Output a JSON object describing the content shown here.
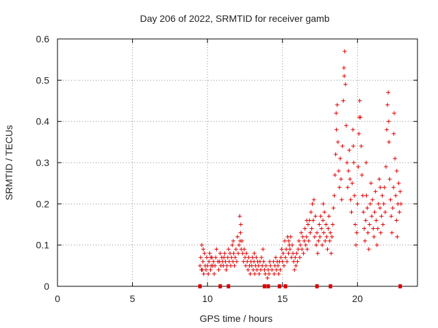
{
  "chart_data": {
    "type": "scatter",
    "title": "Day 206 of 2022, SRMTID for receiver gamb",
    "xlabel": "GPS time / hours",
    "ylabel": "SRMTID / TECUs",
    "xlim": [
      0,
      24
    ],
    "ylim": [
      0,
      0.6
    ],
    "x_ticks": [
      0,
      5,
      10,
      15,
      20
    ],
    "y_ticks": [
      0,
      0.1,
      0.2,
      0.3,
      0.4,
      0.5,
      0.6
    ],
    "x_tick_labels": [
      "0",
      "5",
      "10",
      "15",
      "20"
    ],
    "y_tick_labels": [
      "0",
      "0.1",
      "0.2",
      "0.3",
      "0.4",
      "0.5",
      "0.6"
    ],
    "grid": true,
    "marker": "+",
    "color": "#dd0000",
    "series": [
      {
        "name": "SRMTID",
        "points": [
          [
            9.5,
            0.05
          ],
          [
            9.55,
            0.07
          ],
          [
            9.6,
            0.04
          ],
          [
            9.62,
            0.1
          ],
          [
            9.7,
            0.06
          ],
          [
            9.75,
            0.03
          ],
          [
            9.8,
            0.08
          ],
          [
            9.85,
            0.05
          ],
          [
            9.9,
            0.04
          ],
          [
            9.95,
            0.07
          ],
          [
            10.0,
            0.05
          ],
          [
            10.05,
            0.03
          ],
          [
            10.1,
            0.06
          ],
          [
            10.15,
            0.08
          ],
          [
            10.2,
            0.04
          ],
          [
            10.25,
            0.05
          ],
          [
            10.3,
            0.07
          ],
          [
            10.35,
            0.05
          ],
          [
            10.4,
            0.06
          ],
          [
            10.45,
            0.03
          ],
          [
            10.5,
            0.05
          ],
          [
            10.55,
            0.07
          ],
          [
            10.6,
            0.09
          ],
          [
            10.7,
            0.06
          ],
          [
            10.75,
            0.04
          ],
          [
            10.8,
            0.06
          ],
          [
            10.85,
            0.08
          ],
          [
            10.9,
            0.05
          ],
          [
            10.95,
            0.07
          ],
          [
            11.0,
            0.06
          ],
          [
            11.05,
            0.05
          ],
          [
            11.1,
            0.07
          ],
          [
            11.15,
            0.08
          ],
          [
            11.2,
            0.06
          ],
          [
            11.3,
            0.05
          ],
          [
            11.35,
            0.07
          ],
          [
            11.4,
            0.09
          ],
          [
            11.45,
            0.06
          ],
          [
            11.5,
            0.08
          ],
          [
            11.55,
            0.05
          ],
          [
            11.6,
            0.07
          ],
          [
            11.65,
            0.1
          ],
          [
            11.7,
            0.06
          ],
          [
            11.75,
            0.08
          ],
          [
            11.8,
            0.05
          ],
          [
            11.85,
            0.07
          ],
          [
            11.9,
            0.09
          ],
          [
            11.95,
            0.06
          ],
          [
            12.0,
            0.12
          ],
          [
            12.05,
            0.08
          ],
          [
            12.1,
            0.1
          ],
          [
            12.15,
            0.17
          ],
          [
            12.2,
            0.13
          ],
          [
            12.22,
            0.15
          ],
          [
            12.25,
            0.09
          ],
          [
            12.3,
            0.11
          ],
          [
            12.35,
            0.08
          ],
          [
            12.4,
            0.06
          ],
          [
            12.45,
            0.09
          ],
          [
            12.5,
            0.07
          ],
          [
            12.55,
            0.05
          ],
          [
            12.6,
            0.08
          ],
          [
            12.65,
            0.06
          ],
          [
            12.7,
            0.04
          ],
          [
            12.75,
            0.07
          ],
          [
            12.8,
            0.05
          ],
          [
            12.85,
            0.03
          ],
          [
            12.9,
            0.06
          ],
          [
            12.95,
            0.05
          ],
          [
            13.0,
            0.07
          ],
          [
            13.05,
            0.04
          ],
          [
            13.1,
            0.06
          ],
          [
            13.15,
            0.03
          ],
          [
            13.2,
            0.05
          ],
          [
            13.25,
            0.07
          ],
          [
            13.3,
            0.04
          ],
          [
            13.35,
            0.06
          ],
          [
            13.4,
            0.05
          ],
          [
            13.45,
            0.03
          ],
          [
            13.5,
            0.06
          ],
          [
            13.55,
            0.04
          ],
          [
            13.6,
            0.07
          ],
          [
            13.65,
            0.05
          ],
          [
            13.7,
            0.09
          ],
          [
            13.75,
            0.06
          ],
          [
            13.8,
            0.04
          ],
          [
            13.85,
            0.03
          ],
          [
            13.9,
            0.05
          ],
          [
            14.0,
            0.02
          ],
          [
            14.05,
            0.04
          ],
          [
            14.1,
            0.03
          ],
          [
            14.2,
            0.05
          ],
          [
            14.3,
            0.04
          ],
          [
            14.4,
            0.06
          ],
          [
            14.45,
            0.03
          ],
          [
            14.5,
            0.05
          ],
          [
            14.55,
            0.07
          ],
          [
            14.6,
            0.04
          ],
          [
            14.65,
            0.06
          ],
          [
            14.7,
            0.05
          ],
          [
            14.75,
            0.03
          ],
          [
            14.8,
            0.06
          ],
          [
            14.85,
            0.04
          ],
          [
            14.9,
            0.07
          ],
          [
            14.95,
            0.09
          ],
          [
            15.0,
            0.06
          ],
          [
            15.05,
            0.08
          ],
          [
            15.1,
            0.05
          ],
          [
            15.15,
            0.11
          ],
          [
            15.2,
            0.07
          ],
          [
            15.25,
            0.09
          ],
          [
            15.3,
            0.06
          ],
          [
            15.35,
            0.12
          ],
          [
            15.4,
            0.08
          ],
          [
            15.45,
            0.1
          ],
          [
            15.5,
            0.09
          ],
          [
            15.55,
            0.12
          ],
          [
            15.6,
            0.07
          ],
          [
            15.65,
            0.1
          ],
          [
            15.7,
            0.08
          ],
          [
            15.75,
            0.06
          ],
          [
            15.8,
            0.04
          ],
          [
            15.85,
            0.07
          ],
          [
            15.9,
            0.05
          ],
          [
            15.95,
            0.08
          ],
          [
            16.0,
            0.06
          ],
          [
            16.05,
            0.09
          ],
          [
            16.1,
            0.11
          ],
          [
            16.15,
            0.07
          ],
          [
            16.2,
            0.1
          ],
          [
            16.25,
            0.13
          ],
          [
            16.3,
            0.09
          ],
          [
            16.35,
            0.12
          ],
          [
            16.4,
            0.08
          ],
          [
            16.45,
            0.11
          ],
          [
            16.5,
            0.14
          ],
          [
            16.55,
            0.1
          ],
          [
            16.6,
            0.12
          ],
          [
            16.65,
            0.09
          ],
          [
            16.7,
            0.15
          ],
          [
            16.75,
            0.11
          ],
          [
            16.8,
            0.16
          ],
          [
            16.85,
            0.13
          ],
          [
            16.9,
            0.18
          ],
          [
            16.95,
            0.14
          ],
          [
            17.0,
            0.2
          ],
          [
            17.05,
            0.16
          ],
          [
            17.1,
            0.21
          ],
          [
            17.15,
            0.12
          ],
          [
            17.2,
            0.17
          ],
          [
            17.25,
            0.1
          ],
          [
            17.3,
            0.13
          ],
          [
            17.35,
            0.08
          ],
          [
            17.4,
            0.11
          ],
          [
            17.45,
            0.15
          ],
          [
            17.5,
            0.12
          ],
          [
            17.55,
            0.17
          ],
          [
            17.6,
            0.14
          ],
          [
            17.65,
            0.1
          ],
          [
            17.7,
            0.16
          ],
          [
            17.75,
            0.13
          ],
          [
            17.8,
            0.18
          ],
          [
            17.85,
            0.11
          ],
          [
            17.9,
            0.15
          ],
          [
            17.95,
            0.12
          ],
          [
            18.0,
            0.09
          ],
          [
            18.05,
            0.14
          ],
          [
            18.1,
            0.17
          ],
          [
            18.15,
            0.11
          ],
          [
            18.2,
            0.13
          ],
          [
            18.25,
            0.08
          ],
          [
            18.3,
            0.12
          ],
          [
            18.35,
            0.15
          ],
          [
            18.4,
            0.19
          ],
          [
            18.45,
            0.22
          ],
          [
            18.5,
            0.27
          ],
          [
            18.55,
            0.32
          ],
          [
            18.6,
            0.38
          ],
          [
            18.65,
            0.44
          ],
          [
            18.7,
            0.35
          ],
          [
            18.75,
            0.28
          ],
          [
            18.8,
            0.24
          ],
          [
            18.85,
            0.31
          ],
          [
            18.9,
            0.26
          ],
          [
            18.95,
            0.21
          ],
          [
            19.0,
            0.34
          ],
          [
            19.05,
            0.45
          ],
          [
            19.1,
            0.53
          ],
          [
            19.15,
            0.57
          ],
          [
            19.2,
            0.49
          ],
          [
            19.25,
            0.39
          ],
          [
            19.3,
            0.3
          ],
          [
            19.35,
            0.24
          ],
          [
            19.4,
            0.28
          ],
          [
            19.45,
            0.33
          ],
          [
            19.5,
            0.26
          ],
          [
            19.55,
            0.21
          ],
          [
            19.6,
            0.18
          ],
          [
            19.65,
            0.25
          ],
          [
            19.7,
            0.38
          ],
          [
            19.75,
            0.3
          ],
          [
            19.8,
            0.22
          ],
          [
            19.85,
            0.15
          ],
          [
            19.9,
            0.1
          ],
          [
            19.95,
            0.13
          ],
          [
            20.0,
            0.2
          ],
          [
            20.05,
            0.29
          ],
          [
            20.1,
            0.37
          ],
          [
            20.15,
            0.45
          ],
          [
            20.2,
            0.41
          ],
          [
            20.25,
            0.34
          ],
          [
            20.3,
            0.27
          ],
          [
            20.35,
            0.22
          ],
          [
            20.4,
            0.18
          ],
          [
            20.45,
            0.14
          ],
          [
            20.5,
            0.11
          ],
          [
            20.55,
            0.16
          ],
          [
            20.6,
            0.22
          ],
          [
            20.65,
            0.19
          ],
          [
            20.7,
            0.13
          ],
          [
            20.75,
            0.09
          ],
          [
            20.8,
            0.15
          ],
          [
            20.85,
            0.2
          ],
          [
            20.9,
            0.25
          ],
          [
            20.95,
            0.17
          ],
          [
            21.0,
            0.21
          ],
          [
            21.05,
            0.14
          ],
          [
            21.1,
            0.12
          ],
          [
            21.15,
            0.18
          ],
          [
            21.2,
            0.23
          ],
          [
            21.25,
            0.16
          ],
          [
            21.3,
            0.1
          ],
          [
            21.35,
            0.14
          ],
          [
            21.4,
            0.2
          ],
          [
            21.45,
            0.26
          ],
          [
            21.5,
            0.19
          ],
          [
            21.55,
            0.13
          ],
          [
            21.6,
            0.17
          ],
          [
            21.65,
            0.22
          ],
          [
            21.7,
            0.15
          ],
          [
            21.75,
            0.2
          ],
          [
            21.8,
            0.24
          ],
          [
            21.85,
            0.18
          ],
          [
            21.9,
            0.29
          ],
          [
            21.95,
            0.38
          ],
          [
            22.0,
            0.44
          ],
          [
            22.05,
            0.47
          ],
          [
            22.1,
            0.35
          ],
          [
            22.15,
            0.26
          ],
          [
            22.2,
            0.21
          ],
          [
            22.25,
            0.17
          ],
          [
            22.3,
            0.13
          ],
          [
            22.35,
            0.19
          ],
          [
            22.4,
            0.24
          ],
          [
            22.45,
            0.42
          ],
          [
            22.5,
            0.31
          ],
          [
            22.55,
            0.22
          ],
          [
            22.6,
            0.16
          ],
          [
            22.65,
            0.12
          ],
          [
            22.7,
            0.2
          ],
          [
            22.75,
            0.25
          ],
          [
            22.8,
            0.18
          ],
          [
            22.85,
            0.23
          ],
          [
            22.9,
            0.2
          ],
          [
            9.65,
            0.04
          ],
          [
            9.72,
            0.09
          ],
          [
            10.22,
            0.07
          ],
          [
            11.25,
            0.04
          ],
          [
            11.72,
            0.11
          ],
          [
            12.18,
            0.11
          ],
          [
            13.12,
            0.08
          ],
          [
            14.15,
            0.06
          ],
          [
            15.42,
            0.11
          ],
          [
            16.62,
            0.16
          ],
          [
            17.72,
            0.2
          ],
          [
            18.58,
            0.42
          ],
          [
            19.12,
            0.51
          ],
          [
            19.72,
            0.34
          ],
          [
            20.12,
            0.41
          ],
          [
            20.58,
            0.3
          ],
          [
            21.52,
            0.24
          ],
          [
            22.08,
            0.4
          ],
          [
            22.42,
            0.37
          ],
          [
            22.62,
            0.28
          ]
        ]
      }
    ],
    "gap_markers_x": [
      9.5,
      10.85,
      11.4,
      13.8,
      14.05,
      14.8,
      15.2,
      17.3,
      18.2,
      22.85
    ]
  }
}
